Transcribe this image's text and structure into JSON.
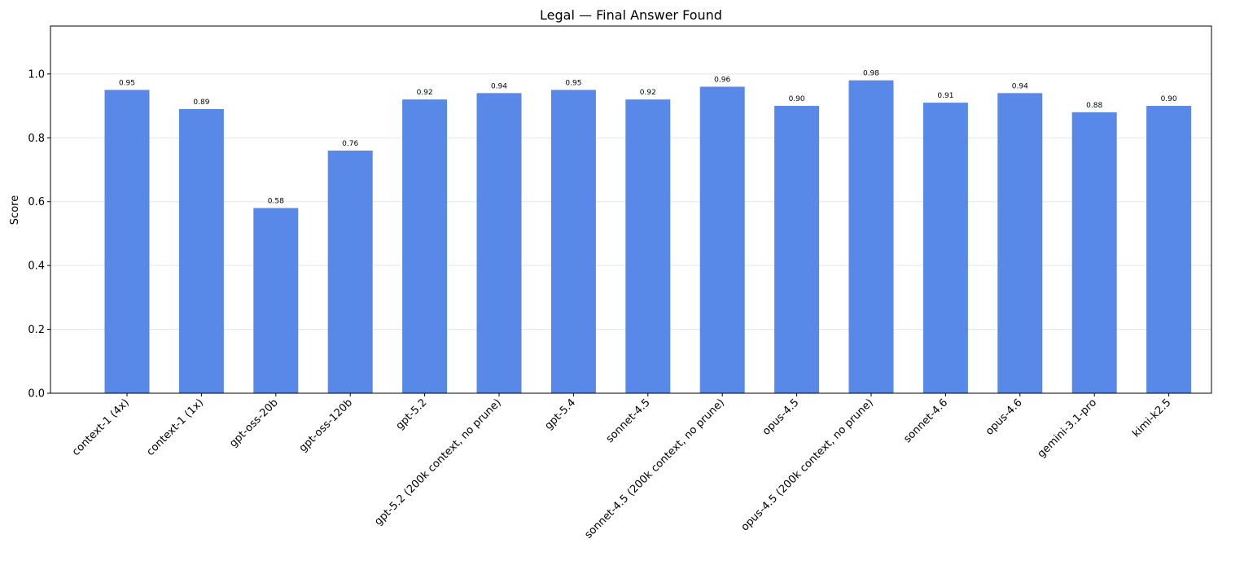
{
  "chart_data": {
    "type": "bar",
    "title": "Legal — Final Answer Found",
    "xlabel": "",
    "ylabel": "Score",
    "ylim": [
      0,
      1.15
    ],
    "yticks": [
      0.0,
      0.2,
      0.4,
      0.6,
      0.8,
      1.0
    ],
    "ytick_labels": [
      "0.0",
      "0.2",
      "0.4",
      "0.6",
      "0.8",
      "1.0"
    ],
    "grid": "y-axis, light",
    "bar_color": "#5989e8",
    "categories": [
      "context-1 (4x)",
      "context-1 (1x)",
      "gpt-oss-20b",
      "gpt-oss-120b",
      "gpt-5.2",
      "gpt-5.2 (200k context, no prune)",
      "gpt-5.4",
      "sonnet-4.5",
      "sonnet-4.5 (200k context, no prune)",
      "opus-4.5",
      "opus-4.5 (200k context, no prune)",
      "sonnet-4.6",
      "opus-4.6",
      "gemini-3.1-pro",
      "kimi-k2.5"
    ],
    "values": [
      0.95,
      0.89,
      0.58,
      0.76,
      0.92,
      0.94,
      0.95,
      0.92,
      0.96,
      0.9,
      0.98,
      0.91,
      0.94,
      0.88,
      0.9
    ],
    "value_labels": [
      "0.95",
      "0.89",
      "0.58",
      "0.76",
      "0.92",
      "0.94",
      "0.95",
      "0.92",
      "0.96",
      "0.90",
      "0.98",
      "0.91",
      "0.94",
      "0.88",
      "0.90"
    ]
  }
}
